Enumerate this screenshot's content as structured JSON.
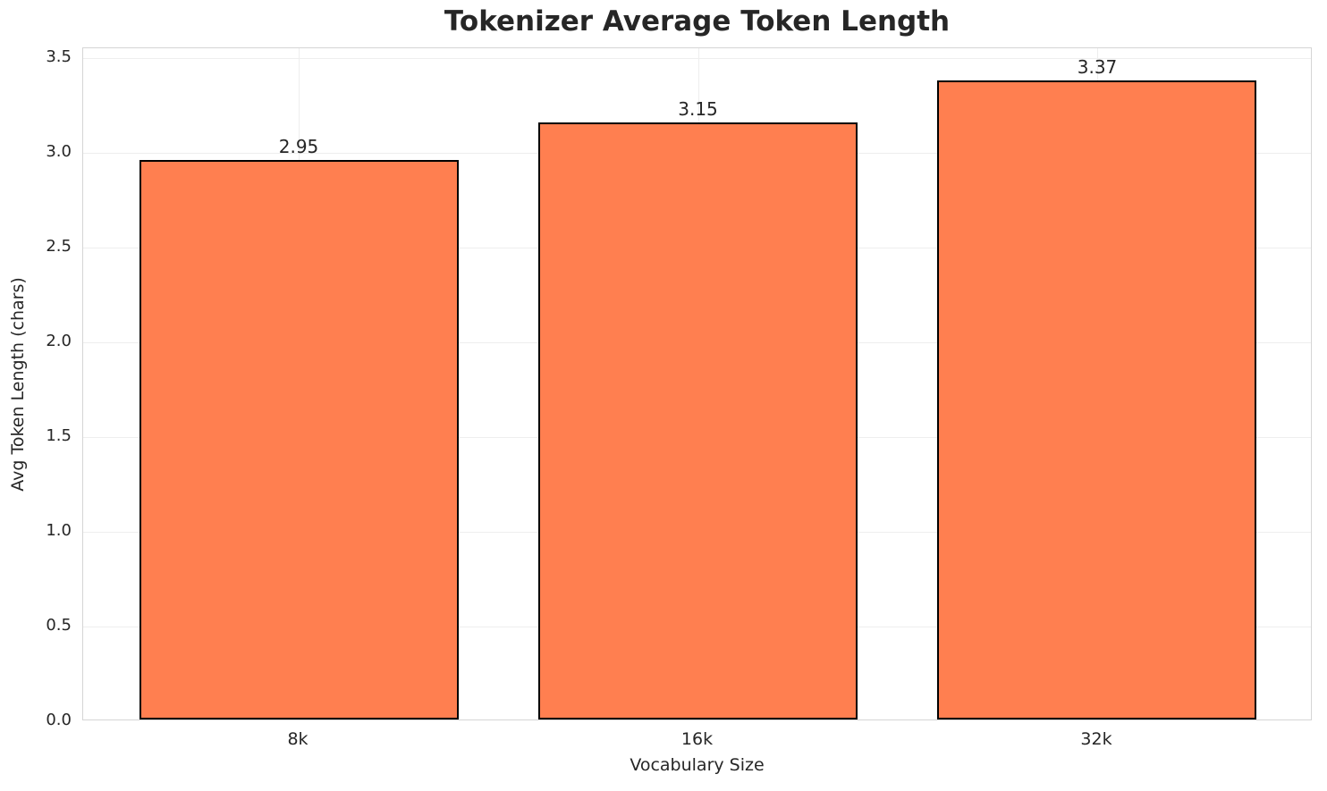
{
  "chart_data": {
    "type": "bar",
    "title": "Tokenizer Average Token Length",
    "xlabel": "Vocabulary Size",
    "ylabel": "Avg Token Length (chars)",
    "categories": [
      "8k",
      "16k",
      "32k"
    ],
    "values": [
      2.95,
      3.15,
      3.37
    ],
    "value_labels": [
      "2.95",
      "3.15",
      "3.37"
    ],
    "ylim": [
      0,
      3.55
    ],
    "yticks": [
      0.0,
      0.5,
      1.0,
      1.5,
      2.0,
      2.5,
      3.0,
      3.5
    ],
    "ytick_labels": [
      "0.0",
      "0.5",
      "1.0",
      "1.5",
      "2.0",
      "2.5",
      "3.0",
      "3.5"
    ],
    "grid": true,
    "grid_axes": "both",
    "legend": "none",
    "bar_color": "#FF7F50",
    "bar_edge_color": "#000000",
    "grid_color": "#eeeeee",
    "spine_color": "#d5d5d5",
    "text_color": "#262626",
    "bar_centers_frac": [
      0.1753,
      0.5,
      0.8247
    ],
    "bar_width_frac": 0.2597
  }
}
